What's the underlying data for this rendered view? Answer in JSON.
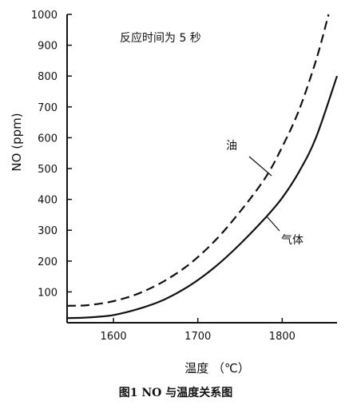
{
  "chart_data": {
    "type": "line",
    "annotation": "反应时间为 5 秒",
    "xlabel": "温度 （℃）",
    "ylabel": "NO (ppm)",
    "caption": "图1 NO 与温度关系图",
    "xlim": [
      1545,
      1865
    ],
    "ylim": [
      0,
      1000
    ],
    "xticks": [
      1600,
      1700,
      1800
    ],
    "yticks": [
      100,
      200,
      300,
      400,
      500,
      600,
      700,
      800,
      900,
      1000
    ],
    "grid": false,
    "series": [
      {
        "name": "油",
        "style": "dashed",
        "x": [
          1545,
          1570,
          1600,
          1630,
          1660,
          1690,
          1720,
          1750,
          1780,
          1800,
          1820,
          1840,
          1855
        ],
        "y": [
          55,
          57,
          70,
          95,
          135,
          190,
          265,
          360,
          470,
          570,
          690,
          850,
          1000
        ]
      },
      {
        "name": "气体",
        "style": "solid",
        "x": [
          1545,
          1570,
          1600,
          1630,
          1660,
          1690,
          1720,
          1750,
          1780,
          1800,
          1820,
          1840,
          1865
        ],
        "y": [
          15,
          17,
          25,
          45,
          75,
          120,
          180,
          255,
          340,
          405,
          490,
          600,
          800
        ]
      }
    ]
  }
}
